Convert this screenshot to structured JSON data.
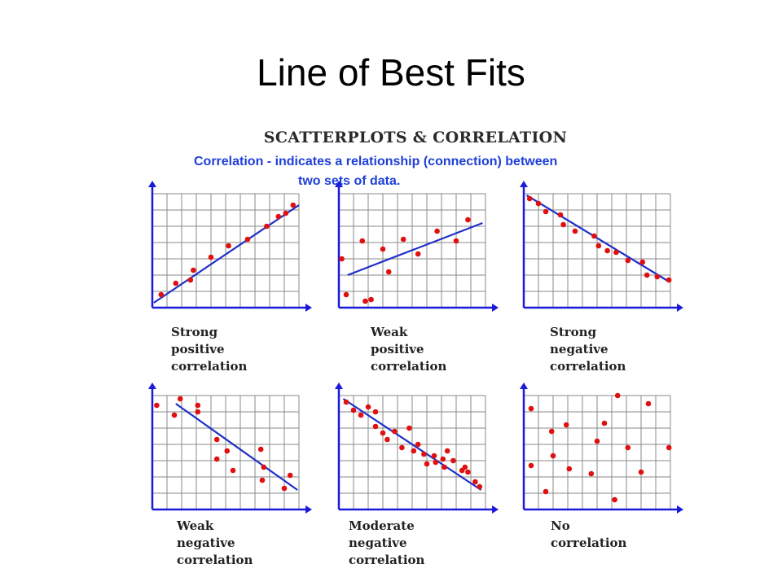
{
  "slide": {
    "title": "Line of Best Fits"
  },
  "figure": {
    "heading": "SCATTERPLOTS & CORRELATION",
    "definition_line1": "Correlation - indicates a relationship (connection) between",
    "definition_line2": "two sets of data.",
    "colors": {
      "axis": "#1a1ad8",
      "fit_line": "#1f2fc8",
      "points": "#e01010",
      "grid": "#8a8a8a",
      "definition_text": "#1f3fd8"
    }
  },
  "chart_data": [
    {
      "type": "scatter",
      "caption_line1": "Strong positive",
      "caption_line2": "correlation",
      "grid": true,
      "xlim": [
        0,
        10
      ],
      "ylim": [
        0,
        7
      ],
      "points": [
        [
          0.6,
          0.8
        ],
        [
          1.6,
          1.5
        ],
        [
          2.6,
          1.7
        ],
        [
          2.8,
          2.3
        ],
        [
          4.0,
          3.1
        ],
        [
          5.2,
          3.8
        ],
        [
          6.5,
          4.2
        ],
        [
          7.8,
          5.0
        ],
        [
          8.6,
          5.6
        ],
        [
          9.1,
          5.8
        ],
        [
          9.6,
          6.3
        ]
      ],
      "fit_line": [
        [
          0.1,
          0.3
        ],
        [
          10,
          6.3
        ]
      ]
    },
    {
      "type": "scatter",
      "caption_line1": "Weak positive",
      "caption_line2": "correlation",
      "grid": true,
      "xlim": [
        0,
        10
      ],
      "ylim": [
        0,
        7
      ],
      "points": [
        [
          0.2,
          3.0
        ],
        [
          0.5,
          0.8
        ],
        [
          1.8,
          0.4
        ],
        [
          1.6,
          4.1
        ],
        [
          2.2,
          0.5
        ],
        [
          3.0,
          3.6
        ],
        [
          3.4,
          2.2
        ],
        [
          4.4,
          4.2
        ],
        [
          5.4,
          3.3
        ],
        [
          6.7,
          4.7
        ],
        [
          8.0,
          4.1
        ],
        [
          8.8,
          5.4
        ]
      ],
      "fit_line": [
        [
          0.6,
          2.0
        ],
        [
          9.8,
          5.2
        ]
      ]
    },
    {
      "type": "scatter",
      "caption_line1": "Strong negative",
      "caption_line2": "correlation",
      "grid": true,
      "xlim": [
        0,
        10
      ],
      "ylim": [
        0,
        7
      ],
      "points": [
        [
          0.4,
          6.7
        ],
        [
          1.0,
          6.4
        ],
        [
          1.5,
          5.9
        ],
        [
          2.5,
          5.7
        ],
        [
          2.7,
          5.1
        ],
        [
          3.5,
          4.7
        ],
        [
          4.8,
          4.4
        ],
        [
          5.1,
          3.8
        ],
        [
          5.7,
          3.5
        ],
        [
          6.3,
          3.4
        ],
        [
          7.1,
          2.9
        ],
        [
          8.1,
          2.8
        ],
        [
          8.4,
          2.0
        ],
        [
          9.1,
          1.9
        ],
        [
          9.9,
          1.7
        ]
      ],
      "fit_line": [
        [
          0.2,
          6.9
        ],
        [
          9.9,
          1.6
        ]
      ]
    },
    {
      "type": "scatter",
      "caption_line1": "Weak negative",
      "caption_line2": "correlation",
      "grid": true,
      "xlim": [
        0,
        10
      ],
      "ylim": [
        0,
        7
      ],
      "points": [
        [
          0.3,
          6.4
        ],
        [
          1.5,
          5.8
        ],
        [
          1.9,
          6.8
        ],
        [
          3.1,
          6.4
        ],
        [
          3.1,
          6.0
        ],
        [
          4.4,
          4.3
        ],
        [
          4.4,
          3.1
        ],
        [
          5.1,
          3.6
        ],
        [
          5.5,
          2.4
        ],
        [
          7.4,
          3.7
        ],
        [
          7.6,
          2.6
        ],
        [
          7.5,
          1.8
        ],
        [
          9.0,
          1.3
        ],
        [
          9.4,
          2.1
        ]
      ],
      "fit_line": [
        [
          1.6,
          6.5
        ],
        [
          9.9,
          1.2
        ]
      ]
    },
    {
      "type": "scatter",
      "caption_line1": "Moderate negative",
      "caption_line2": "correlation",
      "grid": true,
      "xlim": [
        0,
        10
      ],
      "ylim": [
        0,
        7
      ],
      "points": [
        [
          0.5,
          6.6
        ],
        [
          1.0,
          6.1
        ],
        [
          1.5,
          5.8
        ],
        [
          2.0,
          6.3
        ],
        [
          2.5,
          6.0
        ],
        [
          2.5,
          5.1
        ],
        [
          3.0,
          4.7
        ],
        [
          3.3,
          4.3
        ],
        [
          3.8,
          4.8
        ],
        [
          4.3,
          3.8
        ],
        [
          4.8,
          5.0
        ],
        [
          5.1,
          3.6
        ],
        [
          5.4,
          4.0
        ],
        [
          5.8,
          3.4
        ],
        [
          6.0,
          2.8
        ],
        [
          6.5,
          3.3
        ],
        [
          6.6,
          2.9
        ],
        [
          7.1,
          3.1
        ],
        [
          7.2,
          2.6
        ],
        [
          7.4,
          3.6
        ],
        [
          7.8,
          3.0
        ],
        [
          8.4,
          2.4
        ],
        [
          8.6,
          2.6
        ],
        [
          8.8,
          2.3
        ],
        [
          9.3,
          1.7
        ],
        [
          9.6,
          1.4
        ]
      ],
      "fit_line": [
        [
          0.3,
          6.8
        ],
        [
          9.7,
          1.2
        ]
      ]
    },
    {
      "type": "scatter",
      "caption_line1": "No correlation",
      "caption_line2": "",
      "grid": true,
      "xlim": [
        0,
        10
      ],
      "ylim": [
        0,
        7
      ],
      "points": [
        [
          0.5,
          6.2
        ],
        [
          0.5,
          2.7
        ],
        [
          1.5,
          1.1
        ],
        [
          1.9,
          4.8
        ],
        [
          2.0,
          3.3
        ],
        [
          2.9,
          5.2
        ],
        [
          3.1,
          2.5
        ],
        [
          4.6,
          2.2
        ],
        [
          5.0,
          4.2
        ],
        [
          5.5,
          5.3
        ],
        [
          6.2,
          0.6
        ],
        [
          6.4,
          7.0
        ],
        [
          7.1,
          3.8
        ],
        [
          8.0,
          2.3
        ],
        [
          8.5,
          6.5
        ],
        [
          9.9,
          3.8
        ]
      ],
      "fit_line": null
    }
  ]
}
